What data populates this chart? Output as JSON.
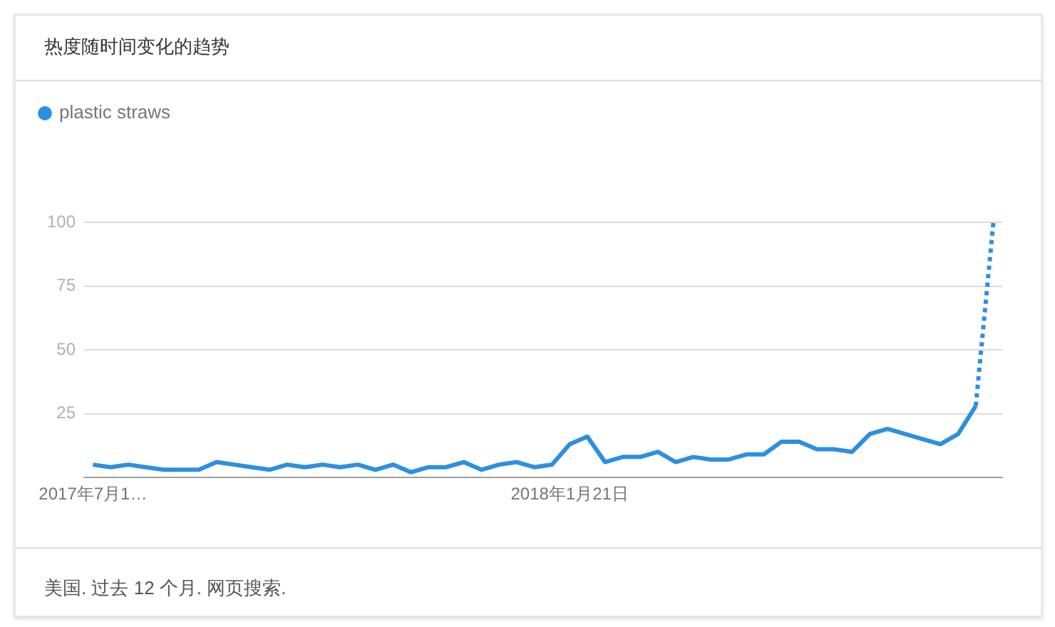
{
  "chart_data": {
    "type": "line",
    "title": "热度随时间变化的趋势",
    "annotations": [
      "美国. 过去 12 个月. 网页搜索."
    ],
    "categories": [
      "2017年7月1…",
      null,
      null,
      null,
      null,
      null,
      null,
      null,
      null,
      null,
      null,
      null,
      null,
      null,
      null,
      null,
      null,
      null,
      null,
      null,
      null,
      null,
      null,
      null,
      null,
      null,
      null,
      "2018年1月21日",
      null,
      null,
      null,
      null,
      null,
      null,
      null,
      null,
      null,
      null,
      null,
      null,
      null,
      null,
      null,
      null,
      null,
      null,
      null,
      null,
      null,
      null,
      null,
      null
    ],
    "series": [
      {
        "name": "plastic straws",
        "color": "#2d8fe0",
        "values": [
          5,
          4,
          5,
          4,
          3,
          3,
          3,
          6,
          5,
          4,
          3,
          5,
          4,
          5,
          4,
          5,
          3,
          5,
          2,
          4,
          4,
          6,
          3,
          5,
          6,
          4,
          5,
          13,
          16,
          6,
          8,
          8,
          10,
          6,
          8,
          7,
          7,
          9,
          9,
          14,
          14,
          11,
          11,
          10,
          17,
          19,
          17,
          15,
          13,
          17,
          28,
          null
        ]
      },
      {
        "color": "#2d8fe0",
        "line_style": "dotted",
        "values": [
          null,
          null,
          null,
          null,
          null,
          null,
          null,
          null,
          null,
          null,
          null,
          null,
          null,
          null,
          null,
          null,
          null,
          null,
          null,
          null,
          null,
          null,
          null,
          null,
          null,
          null,
          null,
          null,
          null,
          null,
          null,
          null,
          null,
          null,
          null,
          null,
          null,
          null,
          null,
          null,
          null,
          null,
          null,
          null,
          null,
          null,
          null,
          null,
          null,
          null,
          28,
          100
        ]
      }
    ],
    "ylim": [
      0,
      100
    ],
    "yticks": [
      25,
      50,
      75,
      100
    ],
    "grid": "y",
    "legend": "top left",
    "marker": "none"
  }
}
